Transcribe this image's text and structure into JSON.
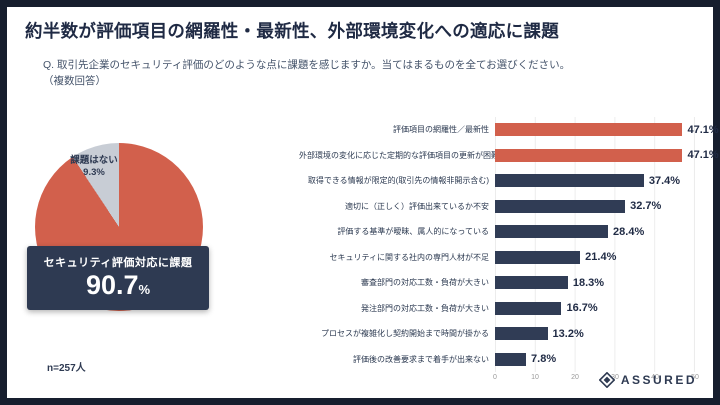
{
  "slide": {
    "title": "約半数が評価項目の網羅性・最新性、外部環境変化への適応に課題",
    "question_line1": "Q. 取引先企業のセキュリティ評価のどのような点に課題を感じますか。当てはまるものを全てお選びください。",
    "question_line2": "（複数回答）",
    "sample_note": "n=257人",
    "logo_text": "ASSURED"
  },
  "colors": {
    "accent": "#D2604C",
    "navy": "#303C55",
    "callout_navy": "#2E3A52",
    "slice_gray": "#C8CDD5",
    "frame": "#161E2E"
  },
  "chart_data": [
    {
      "type": "pie",
      "labels": [
        "セキュリティ評価対応に課題",
        "課題はない"
      ],
      "values": [
        90.7,
        9.3
      ],
      "colors": [
        "#D2604C",
        "#C8CDD5"
      ],
      "slice_label": {
        "text": "課題はない",
        "value": "9.3%"
      },
      "callout": {
        "label": "セキュリティ評価対応に課題",
        "value": "90.7",
        "unit": "%"
      },
      "note": "n=257人"
    },
    {
      "type": "bar",
      "orientation": "horizontal",
      "categories": [
        "評価項目の網羅性／最新性",
        "外部環境の変化に応じた定期的な評価項目の更新が困難",
        "取得できる情報が限定的(取引先の情報非開示含む)",
        "適切に（正しく）評価出来ているか不安",
        "評価する基準が曖昧、属人的になっている",
        "セキュリティに関する社内の専門人材が不足",
        "審査部門の対応工数・負荷が大きい",
        "発注部門の対応工数・負荷が大きい",
        "プロセスが複雑化し契約開始まで時間が掛かる",
        "評価後の改善要求まで着手が出来ない"
      ],
      "values": [
        47.1,
        47.1,
        37.4,
        32.7,
        28.4,
        21.4,
        18.3,
        16.7,
        13.2,
        7.8
      ],
      "value_labels": [
        "47.1%",
        "47.1%",
        "37.4%",
        "32.7%",
        "28.4%",
        "21.4%",
        "18.3%",
        "16.7%",
        "13.2%",
        "7.8%"
      ],
      "highlight": [
        true,
        true,
        false,
        false,
        false,
        false,
        false,
        false,
        false,
        false
      ],
      "bar_colors": {
        "highlight": "#D2604C",
        "default": "#303C55"
      },
      "xlim": [
        0,
        50
      ],
      "ticks": [
        0,
        10,
        20,
        30,
        40,
        50
      ],
      "grid": true,
      "legend": "none"
    }
  ]
}
